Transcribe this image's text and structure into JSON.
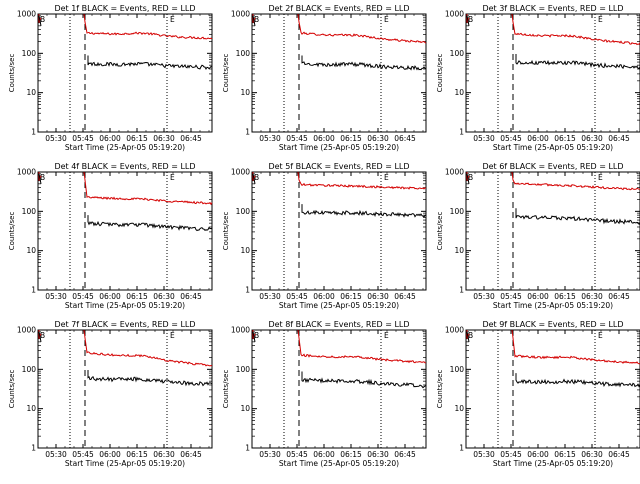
{
  "chart_data": [
    {
      "type": "line",
      "title": "Det 1f BLACK = Events, RED = LLD",
      "xlabel": "Start Time (25-Apr-05 05:19:20)",
      "ylabel": "Counts/sec",
      "yscale": "log",
      "ylim": [
        1,
        1000
      ],
      "x_ticks": [
        "05:30",
        "05:45",
        "06:00",
        "06:15",
        "06:30",
        "06:45"
      ],
      "y_ticks": [
        "1",
        "10",
        "100",
        "1000"
      ],
      "markers": {
        "left": "B",
        "right": "E"
      },
      "series": [
        {
          "name": "LLD",
          "color": "#d40000",
          "start": 330,
          "end": 240,
          "bump": 40
        },
        {
          "name": "Events",
          "color": "#000000",
          "start": 55,
          "end": 44,
          "bump": 4
        }
      ]
    },
    {
      "type": "line",
      "title": "Det 2f BLACK = Events, RED = LLD",
      "xlabel": "Start Time (25-Apr-05 05:19:20)",
      "ylabel": "Counts/sec",
      "yscale": "log",
      "ylim": [
        1,
        1000
      ],
      "x_ticks": [
        "05:30",
        "05:45",
        "06:00",
        "06:15",
        "06:30",
        "06:45"
      ],
      "y_ticks": [
        "1",
        "10",
        "100",
        "1000"
      ],
      "markers": {
        "left": "B",
        "right": "E"
      },
      "series": [
        {
          "name": "LLD",
          "color": "#d40000",
          "start": 330,
          "end": 190,
          "bump": 30
        },
        {
          "name": "Events",
          "color": "#000000",
          "start": 55,
          "end": 42,
          "bump": 4
        }
      ]
    },
    {
      "type": "line",
      "title": "Det 3f BLACK = Events, RED = LLD",
      "xlabel": "Start Time (25-Apr-05 05:19:20)",
      "ylabel": "Counts/sec",
      "yscale": "log",
      "ylim": [
        1,
        1000
      ],
      "x_ticks": [
        "05:30",
        "05:45",
        "06:00",
        "06:15",
        "06:30",
        "06:45"
      ],
      "y_ticks": [
        "1",
        "10",
        "100",
        "1000"
      ],
      "markers": {
        "left": "B",
        "right": "E"
      },
      "series": [
        {
          "name": "LLD",
          "color": "#d40000",
          "start": 320,
          "end": 175,
          "bump": 35
        },
        {
          "name": "Events",
          "color": "#000000",
          "start": 60,
          "end": 45,
          "bump": 5
        }
      ]
    },
    {
      "type": "line",
      "title": "Det 4f BLACK = Events, RED = LLD",
      "xlabel": "Start Time (25-Apr-05 05:19:20)",
      "ylabel": "Counts/sec",
      "yscale": "log",
      "ylim": [
        1,
        1000
      ],
      "x_ticks": [
        "05:30",
        "05:45",
        "06:00",
        "06:15",
        "06:30",
        "06:45"
      ],
      "y_ticks": [
        "1",
        "10",
        "100",
        "1000"
      ],
      "markers": {
        "left": "B",
        "right": "E"
      },
      "series": [
        {
          "name": "LLD",
          "color": "#d40000",
          "start": 230,
          "end": 160,
          "bump": 10
        },
        {
          "name": "Events",
          "color": "#000000",
          "start": 50,
          "end": 35,
          "bump": 3
        }
      ]
    },
    {
      "type": "line",
      "title": "Det 5f BLACK = Events, RED = LLD",
      "xlabel": "Start Time (25-Apr-05 05:19:20)",
      "ylabel": "Counts/sec",
      "yscale": "log",
      "ylim": [
        1,
        1000
      ],
      "x_ticks": [
        "05:30",
        "05:45",
        "06:00",
        "06:15",
        "06:30",
        "06:45"
      ],
      "y_ticks": [
        "1",
        "10",
        "100",
        "1000"
      ],
      "markers": {
        "left": "B",
        "right": "E"
      },
      "series": [
        {
          "name": "LLD",
          "color": "#d40000",
          "start": 480,
          "end": 380,
          "bump": 5
        },
        {
          "name": "Events",
          "color": "#000000",
          "start": 95,
          "end": 80,
          "bump": 3
        }
      ]
    },
    {
      "type": "line",
      "title": "Det 6f BLACK = Events, RED = LLD",
      "xlabel": "Start Time (25-Apr-05 05:19:20)",
      "ylabel": "Counts/sec",
      "yscale": "log",
      "ylim": [
        1,
        1000
      ],
      "x_ticks": [
        "05:30",
        "05:45",
        "06:00",
        "06:15",
        "06:30",
        "06:45"
      ],
      "y_ticks": [
        "1",
        "10",
        "100",
        "1000"
      ],
      "markers": {
        "left": "B",
        "right": "E"
      },
      "series": [
        {
          "name": "LLD",
          "color": "#d40000",
          "start": 520,
          "end": 360,
          "bump": 10
        },
        {
          "name": "Events",
          "color": "#000000",
          "start": 75,
          "end": 52,
          "bump": 3
        }
      ]
    },
    {
      "type": "line",
      "title": "Det 7f BLACK = Events, RED = LLD",
      "xlabel": "Start Time (25-Apr-05 05:19:20)",
      "ylabel": "Counts/sec",
      "yscale": "log",
      "ylim": [
        1,
        1000
      ],
      "x_ticks": [
        "05:30",
        "05:45",
        "06:00",
        "06:15",
        "06:30",
        "06:45"
      ],
      "y_ticks": [
        "1",
        "10",
        "100",
        "1000"
      ],
      "markers": {
        "left": "B",
        "right": "E"
      },
      "series": [
        {
          "name": "LLD",
          "color": "#d40000",
          "start": 270,
          "end": 125,
          "bump": 30
        },
        {
          "name": "Events",
          "color": "#000000",
          "start": 60,
          "end": 42,
          "bump": 5
        }
      ]
    },
    {
      "type": "line",
      "title": "Det 8f BLACK = Events, RED = LLD",
      "xlabel": "Start Time (25-Apr-05 05:19:20)",
      "ylabel": "Counts/sec",
      "yscale": "log",
      "ylim": [
        1,
        1000
      ],
      "x_ticks": [
        "05:30",
        "05:45",
        "06:00",
        "06:15",
        "06:30",
        "06:45"
      ],
      "y_ticks": [
        "1",
        "10",
        "100",
        "1000"
      ],
      "markers": {
        "left": "B",
        "right": "E"
      },
      "series": [
        {
          "name": "LLD",
          "color": "#d40000",
          "start": 230,
          "end": 150,
          "bump": 20
        },
        {
          "name": "Events",
          "color": "#000000",
          "start": 55,
          "end": 38,
          "bump": 4
        }
      ]
    },
    {
      "type": "line",
      "title": "Det 9f BLACK = Events, RED = LLD",
      "xlabel": "Start Time (25-Apr-05 05:19:20)",
      "ylabel": "Counts/sec",
      "yscale": "log",
      "ylim": [
        1,
        1000
      ],
      "x_ticks": [
        "05:30",
        "05:45",
        "06:00",
        "06:15",
        "06:30",
        "06:45"
      ],
      "y_ticks": [
        "1",
        "10",
        "100",
        "1000"
      ],
      "markers": {
        "left": "B",
        "right": "E"
      },
      "series": [
        {
          "name": "LLD",
          "color": "#d40000",
          "start": 220,
          "end": 145,
          "bump": 20
        },
        {
          "name": "Events",
          "color": "#000000",
          "start": 50,
          "end": 40,
          "bump": 4
        }
      ]
    }
  ]
}
